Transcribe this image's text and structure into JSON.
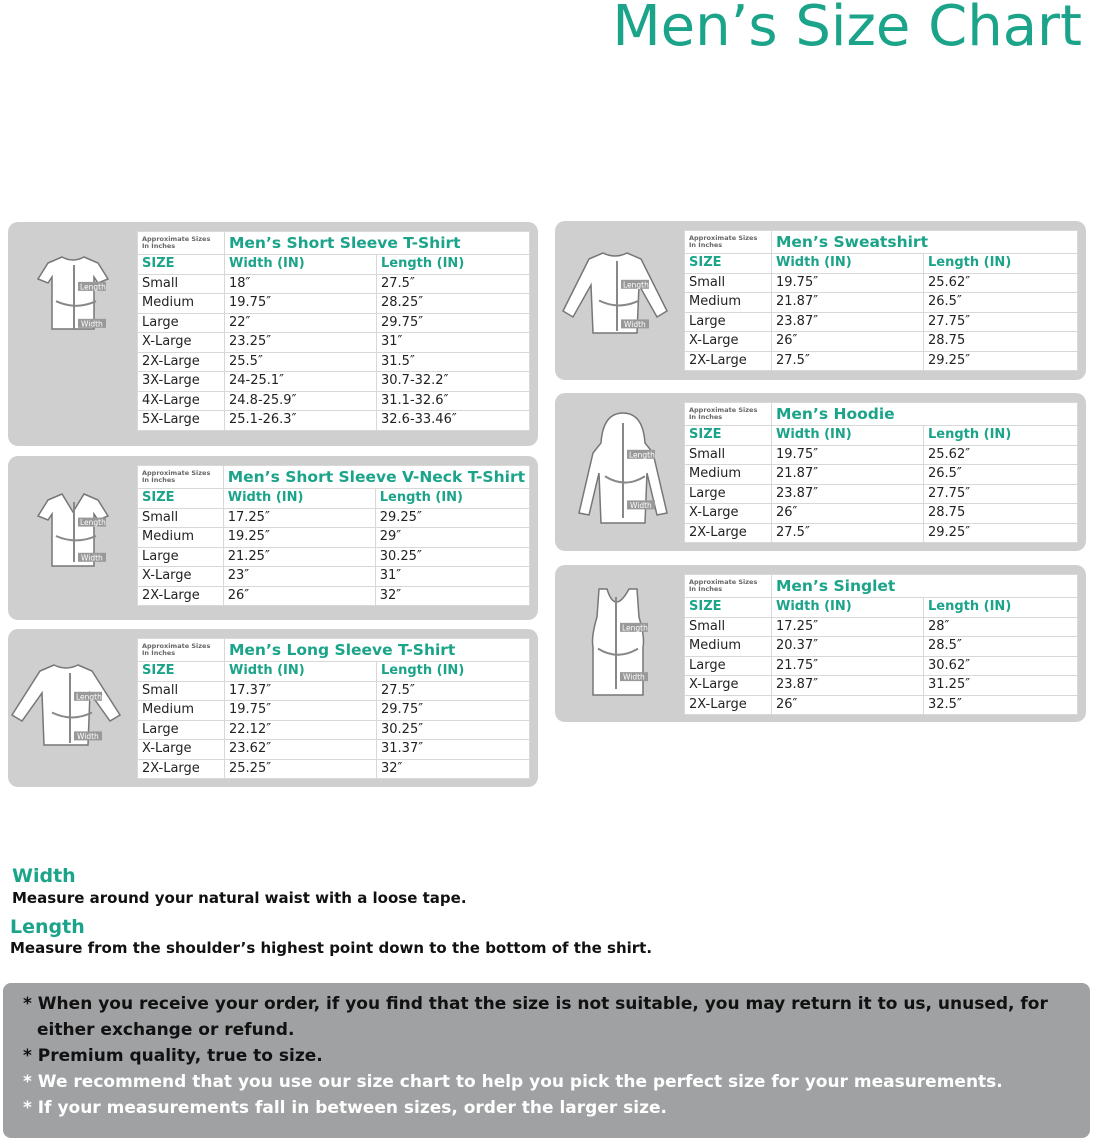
{
  "title": "Men’s Size Chart",
  "approx_label": "Approximate Sizes In Inches",
  "columns": [
    "SIZE",
    "Width (IN)",
    "Length (IN)"
  ],
  "icon_labels": {
    "length": "Length",
    "width": "Width"
  },
  "accent_color": "#1ba489",
  "tables": [
    {
      "title": "Men’s Short Sleeve T-Shirt",
      "icon": "tshirt-icon",
      "rows": [
        [
          "Small",
          "18″",
          "27.5″"
        ],
        [
          "Medium",
          "19.75″",
          "28.25″"
        ],
        [
          "Large",
          "22″",
          "29.75″"
        ],
        [
          "X-Large",
          "23.25″",
          "31″"
        ],
        [
          "2X-Large",
          "25.5″",
          "31.5″"
        ],
        [
          "3X-Large",
          "24-25.1″",
          "30.7-32.2″"
        ],
        [
          "4X-Large",
          "24.8-25.9″",
          "31.1-32.6″"
        ],
        [
          "5X-Large",
          "25.1-26.3″",
          "32.6-33.46″"
        ]
      ]
    },
    {
      "title": "Men’s Short Sleeve V-Neck T-Shirt",
      "icon": "vneck-tshirt-icon",
      "rows": [
        [
          "Small",
          "17.25″",
          "29.25″"
        ],
        [
          "Medium",
          "19.25″",
          "29″"
        ],
        [
          "Large",
          "21.25″",
          "30.25″"
        ],
        [
          "X-Large",
          "23″",
          "31″"
        ],
        [
          "2X-Large",
          "26″",
          "32″"
        ]
      ]
    },
    {
      "title": "Men’s Long Sleeve T-Shirt",
      "icon": "long-sleeve-icon",
      "rows": [
        [
          "Small",
          "17.37″",
          "27.5″"
        ],
        [
          "Medium",
          "19.75″",
          "29.75″"
        ],
        [
          "Large",
          "22.12″",
          "30.25″"
        ],
        [
          "X-Large",
          "23.62″",
          "31.37″"
        ],
        [
          "2X-Large",
          "25.25″",
          "32″"
        ]
      ]
    },
    {
      "title": "Men’s Sweatshirt",
      "icon": "sweatshirt-icon",
      "rows": [
        [
          "Small",
          "19.75″",
          "25.62″"
        ],
        [
          "Medium",
          "21.87″",
          "26.5″"
        ],
        [
          "Large",
          "23.87″",
          "27.75″"
        ],
        [
          "X-Large",
          "26″",
          "28.75"
        ],
        [
          "2X-Large",
          "27.5″",
          "29.25″"
        ]
      ]
    },
    {
      "title": "Men’s Hoodie",
      "icon": "hoodie-icon",
      "rows": [
        [
          "Small",
          "19.75″",
          "25.62″"
        ],
        [
          "Medium",
          "21.87″",
          "26.5″"
        ],
        [
          "Large",
          "23.87″",
          "27.75″"
        ],
        [
          "X-Large",
          "26″",
          "28.75"
        ],
        [
          "2X-Large",
          "27.5″",
          "29.25″"
        ]
      ]
    },
    {
      "title": "Men’s Singlet",
      "icon": "singlet-icon",
      "rows": [
        [
          "Small",
          "17.25″",
          "28″"
        ],
        [
          "Medium",
          "20.37″",
          "28.5″"
        ],
        [
          "Large",
          "21.75″",
          "30.62″"
        ],
        [
          "X-Large",
          "23.87″",
          "31.25″"
        ],
        [
          "2X-Large",
          "26″",
          "32.5″"
        ]
      ]
    }
  ],
  "guide": {
    "width_heading": "Width",
    "width_text": "Measure around your natural waist with a loose tape.",
    "length_heading": "Length",
    "length_text": "Measure from the shoulder’s highest point down to the bottom of the shirt."
  },
  "notes": [
    {
      "text": "* When you receive your order, if you find that the size is not suitable, you may return it to us, unused, for either exchange or refund.",
      "color": "#111111"
    },
    {
      "text": "* Premium quality, true to size.",
      "color": "#111111"
    },
    {
      "text": "* We recommend that you use our size chart to help you pick the perfect size for your measurements.",
      "color": "#ffffff"
    },
    {
      "text": "* If your measurements fall in between sizes, order the larger size.",
      "color": "#ffffff"
    }
  ]
}
